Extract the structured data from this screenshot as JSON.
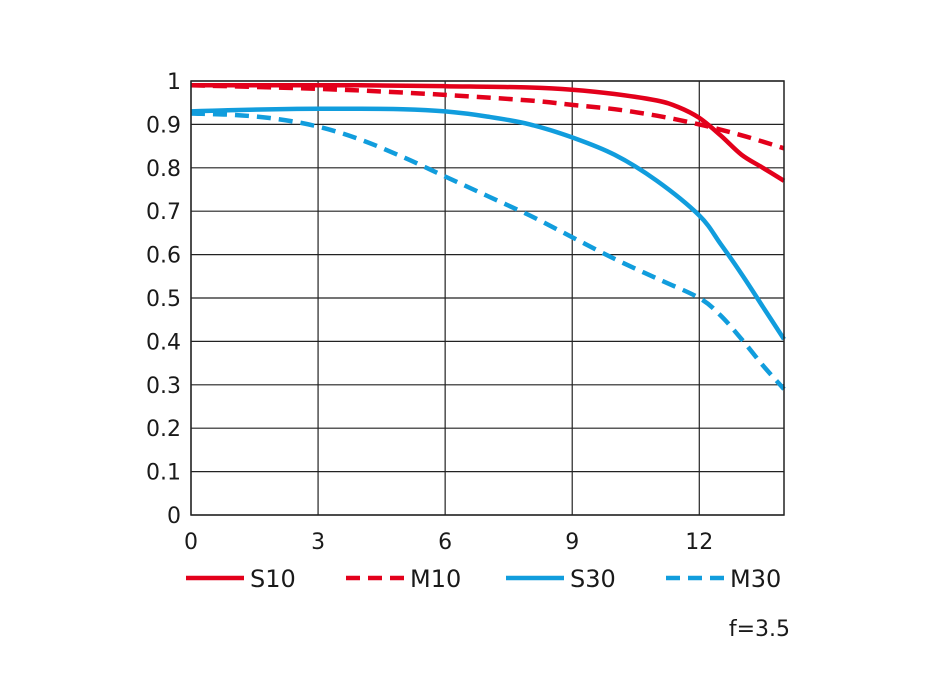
{
  "chart_data": {
    "type": "line",
    "title": "",
    "xlabel": "",
    "ylabel": "",
    "xlim": [
      0,
      14
    ],
    "ylim": [
      0,
      1
    ],
    "x_ticks": [
      0,
      3,
      6,
      9,
      12
    ],
    "x_tick_labels": [
      "0",
      "3",
      "6",
      "9",
      "12"
    ],
    "y_ticks": [
      0,
      0.1,
      0.2,
      0.3,
      0.4,
      0.5,
      0.6,
      0.7,
      0.8,
      0.9,
      1
    ],
    "y_tick_labels": [
      "0",
      "0.1",
      "0.2",
      "0.3",
      "0.4",
      "0.5",
      "0.6",
      "0.7",
      "0.8",
      "0.9",
      "1"
    ],
    "grid": true,
    "legend_position": "bottom",
    "annotation": "f=3.5",
    "series": [
      {
        "name": "S10",
        "color": "#e3001b",
        "style": "solid",
        "x": [
          0,
          2,
          4,
          6,
          8,
          9,
          10,
          11,
          11.5,
          12,
          12.5,
          13,
          13.5,
          14
        ],
        "y": [
          0.99,
          0.99,
          0.99,
          0.988,
          0.985,
          0.98,
          0.97,
          0.955,
          0.94,
          0.915,
          0.875,
          0.83,
          0.8,
          0.77
        ]
      },
      {
        "name": "M10",
        "color": "#e3001b",
        "style": "dashed",
        "x": [
          0,
          2,
          4,
          6,
          8,
          9,
          10,
          11,
          12,
          13,
          14
        ],
        "y": [
          0.99,
          0.985,
          0.978,
          0.968,
          0.955,
          0.945,
          0.935,
          0.92,
          0.9,
          0.875,
          0.845
        ]
      },
      {
        "name": "S30",
        "color": "#119ddd",
        "style": "solid",
        "x": [
          0,
          1,
          2,
          3,
          4,
          5,
          6,
          7,
          8,
          9,
          10,
          11,
          12,
          12.5,
          13,
          13.5,
          14
        ],
        "y": [
          0.93,
          0.933,
          0.935,
          0.936,
          0.936,
          0.935,
          0.93,
          0.918,
          0.9,
          0.87,
          0.83,
          0.77,
          0.69,
          0.625,
          0.555,
          0.48,
          0.405
        ]
      },
      {
        "name": "M30",
        "color": "#119ddd",
        "style": "dashed",
        "x": [
          0,
          1,
          2,
          3,
          4,
          5,
          6,
          7,
          8,
          9,
          10,
          11,
          12,
          12.5,
          13,
          13.5,
          14
        ],
        "y": [
          0.925,
          0.922,
          0.913,
          0.895,
          0.865,
          0.825,
          0.78,
          0.735,
          0.69,
          0.64,
          0.59,
          0.545,
          0.5,
          0.46,
          0.405,
          0.345,
          0.29
        ]
      }
    ]
  }
}
